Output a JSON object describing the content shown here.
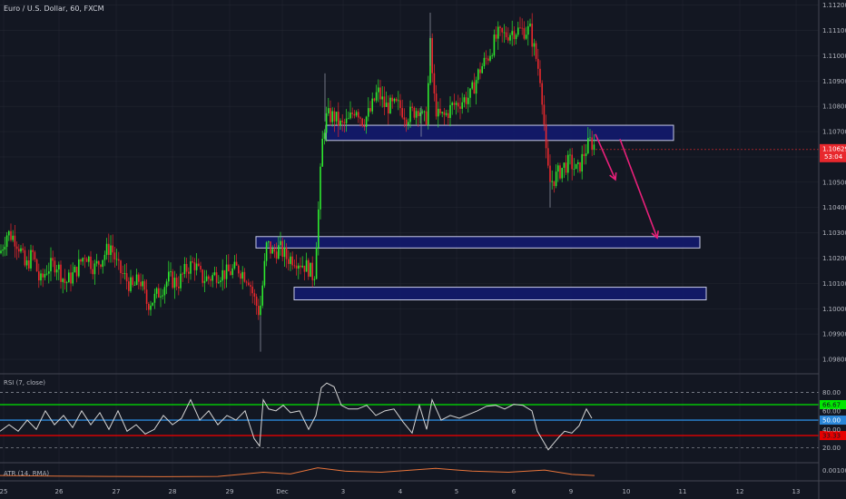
{
  "header": {
    "symbol_title": "Euro / U.S. Dollar, 60, FXCM"
  },
  "colors": {
    "background": "#131722",
    "grid": "#2a2e39",
    "axis_text": "#b2b5be",
    "bull": "#2ee82e",
    "bear": "#e8282d",
    "zone_fill": "#131a6e",
    "zone_stroke": "#c8cbe8",
    "arrow": "#e8207a",
    "rsi_line": "#d6d6d6",
    "rsi_upper": "#00e600",
    "rsi_mid": "#2a86d8",
    "rsi_lower": "#e60000",
    "atr_line": "#e8743a",
    "price_badge": "#e8282d"
  },
  "chart_data": {
    "type": "candlestick",
    "price_axis": {
      "ticks": [
        "1.11200",
        "1.11100",
        "1.11000",
        "1.10900",
        "1.10800",
        "1.10700",
        "1.10600",
        "1.10500",
        "1.10400",
        "1.10300",
        "1.10200",
        "1.10100",
        "1.10000",
        "1.09900",
        "1.09800"
      ],
      "ylim": [
        1.0975,
        1.1122
      ]
    },
    "time_axis": {
      "ticks": [
        "25",
        "26",
        "27",
        "28",
        "29",
        "Dec",
        "3",
        "4",
        "5",
        "6",
        "9",
        "10",
        "11",
        "12",
        "13"
      ]
    },
    "candle_path": [
      [
        0,
        1.1022
      ],
      [
        8,
        1.103
      ],
      [
        16,
        1.1028
      ],
      [
        22,
        1.1024
      ],
      [
        28,
        1.1016
      ],
      [
        36,
        1.1022
      ],
      [
        44,
        1.101
      ],
      [
        52,
        1.1016
      ],
      [
        62,
        1.1018
      ],
      [
        72,
        1.101
      ],
      [
        82,
        1.1014
      ],
      [
        94,
        1.1022
      ],
      [
        104,
        1.1016
      ],
      [
        112,
        1.102
      ],
      [
        122,
        1.1025
      ],
      [
        130,
        1.1016
      ],
      [
        138,
        1.1012
      ],
      [
        146,
        1.1008
      ],
      [
        154,
        1.1012
      ],
      [
        162,
        1.1002
      ],
      [
        170,
        1.1004
      ],
      [
        178,
        1.1008
      ],
      [
        186,
        1.1012
      ],
      [
        196,
        1.101
      ],
      [
        206,
        1.1016
      ],
      [
        214,
        1.1018
      ],
      [
        222,
        1.1012
      ],
      [
        230,
        1.1012
      ],
      [
        240,
        1.1014
      ],
      [
        250,
        1.1014
      ],
      [
        262,
        1.1016
      ],
      [
        274,
        1.1012
      ],
      [
        280,
        1.1004
      ],
      [
        286,
        1.0998
      ],
      [
        290,
        1.1012
      ],
      [
        294,
        1.1026
      ],
      [
        300,
        1.1022
      ],
      [
        308,
        1.1024
      ],
      [
        316,
        1.102
      ],
      [
        324,
        1.102
      ],
      [
        332,
        1.1018
      ],
      [
        340,
        1.1016
      ],
      [
        346,
        1.1012
      ],
      [
        348,
        1.1024
      ],
      [
        350,
        1.1034
      ],
      [
        352,
        1.1046
      ],
      [
        354,
        1.106
      ],
      [
        356,
        1.107
      ],
      [
        360,
        1.1076
      ],
      [
        368,
        1.1076
      ],
      [
        376,
        1.1072
      ],
      [
        384,
        1.1074
      ],
      [
        392,
        1.108
      ],
      [
        400,
        1.1074
      ],
      [
        408,
        1.1078
      ],
      [
        416,
        1.1086
      ],
      [
        424,
        1.108
      ],
      [
        432,
        1.108
      ],
      [
        440,
        1.108
      ],
      [
        448,
        1.1076
      ],
      [
        456,
        1.1078
      ],
      [
        462,
        1.108
      ],
      [
        466,
        1.1074
      ],
      [
        470,
        1.1076
      ],
      [
        474,
        1.1104
      ],
      [
        478,
        1.1084
      ],
      [
        482,
        1.1076
      ],
      [
        490,
        1.1076
      ],
      [
        498,
        1.108
      ],
      [
        508,
        1.1082
      ],
      [
        518,
        1.1084
      ],
      [
        528,
        1.1094
      ],
      [
        538,
        1.11
      ],
      [
        548,
        1.1108
      ],
      [
        556,
        1.1108
      ],
      [
        566,
        1.111
      ],
      [
        576,
        1.111
      ],
      [
        584,
        1.111
      ],
      [
        590,
        1.11
      ],
      [
        596,
        1.109
      ],
      [
        600,
        1.107
      ],
      [
        602,
        1.1058
      ],
      [
        606,
        1.105
      ],
      [
        612,
        1.1052
      ],
      [
        620,
        1.1056
      ],
      [
        628,
        1.1058
      ],
      [
        636,
        1.1054
      ],
      [
        644,
        1.1062
      ],
      [
        650,
        1.1066
      ],
      [
        656,
        1.1064
      ]
    ],
    "zones": [
      {
        "from_price": 1.10725,
        "to_price": 1.10665,
        "x_start": 359,
        "x_end": 742
      },
      {
        "from_price": 1.10285,
        "to_price": 1.1024,
        "x_start": 282,
        "x_end": 771
      },
      {
        "from_price": 1.10085,
        "to_price": 1.10035,
        "x_start": 324,
        "x_end": 778
      }
    ],
    "last_price": "1.10629",
    "countdown": "53:04",
    "projection_arrows": [
      {
        "from": [
          656,
          1.1069
        ],
        "to": [
          678,
          1.1051
        ]
      },
      {
        "from": [
          683,
          1.1067
        ],
        "to": [
          724,
          1.1028
        ]
      }
    ],
    "rsi": {
      "title": "RSI (7, close)",
      "ticks": [
        "80.00",
        "60.00",
        "40.00",
        "20.00"
      ],
      "ylim": [
        6,
        98
      ],
      "upper_label": "66.67",
      "mid_label": "50.00",
      "lower_label": "33.33",
      "upper": 66.67,
      "mid": 50.0,
      "lower": 33.33,
      "dashed_levels": [
        80,
        20
      ],
      "path": [
        [
          0,
          38
        ],
        [
          10,
          45
        ],
        [
          20,
          38
        ],
        [
          30,
          50
        ],
        [
          40,
          40
        ],
        [
          50,
          60
        ],
        [
          60,
          45
        ],
        [
          70,
          55
        ],
        [
          80,
          42
        ],
        [
          90,
          60
        ],
        [
          100,
          45
        ],
        [
          110,
          58
        ],
        [
          120,
          40
        ],
        [
          130,
          60
        ],
        [
          140,
          38
        ],
        [
          150,
          45
        ],
        [
          160,
          35
        ],
        [
          170,
          40
        ],
        [
          180,
          55
        ],
        [
          190,
          45
        ],
        [
          200,
          52
        ],
        [
          210,
          72
        ],
        [
          220,
          50
        ],
        [
          230,
          60
        ],
        [
          240,
          45
        ],
        [
          250,
          55
        ],
        [
          260,
          50
        ],
        [
          270,
          60
        ],
        [
          280,
          30
        ],
        [
          286,
          22
        ],
        [
          290,
          72
        ],
        [
          296,
          62
        ],
        [
          304,
          60
        ],
        [
          312,
          66
        ],
        [
          320,
          58
        ],
        [
          330,
          60
        ],
        [
          340,
          40
        ],
        [
          348,
          55
        ],
        [
          354,
          85
        ],
        [
          360,
          90
        ],
        [
          368,
          86
        ],
        [
          376,
          66
        ],
        [
          384,
          62
        ],
        [
          394,
          62
        ],
        [
          404,
          66
        ],
        [
          414,
          55
        ],
        [
          424,
          60
        ],
        [
          434,
          62
        ],
        [
          444,
          48
        ],
        [
          454,
          36
        ],
        [
          462,
          66
        ],
        [
          470,
          40
        ],
        [
          476,
          72
        ],
        [
          486,
          50
        ],
        [
          496,
          55
        ],
        [
          506,
          52
        ],
        [
          516,
          56
        ],
        [
          526,
          60
        ],
        [
          536,
          65
        ],
        [
          546,
          66
        ],
        [
          556,
          62
        ],
        [
          566,
          67
        ],
        [
          576,
          66
        ],
        [
          586,
          60
        ],
        [
          592,
          38
        ],
        [
          598,
          28
        ],
        [
          604,
          18
        ],
        [
          610,
          25
        ],
        [
          616,
          32
        ],
        [
          622,
          38
        ],
        [
          630,
          36
        ],
        [
          638,
          44
        ],
        [
          646,
          62
        ],
        [
          652,
          52
        ]
      ]
    },
    "atr": {
      "title": "ATR (14, RMA)",
      "tick": "0.00100",
      "ylim": [
        0.0002,
        0.0016
      ],
      "path": [
        [
          0,
          0.0006
        ],
        [
          60,
          0.00055
        ],
        [
          120,
          0.00052
        ],
        [
          180,
          0.0005
        ],
        [
          240,
          0.00052
        ],
        [
          290,
          0.0009
        ],
        [
          320,
          0.00075
        ],
        [
          350,
          0.0013
        ],
        [
          380,
          0.001
        ],
        [
          420,
          0.0009
        ],
        [
          480,
          0.00125
        ],
        [
          520,
          0.001
        ],
        [
          560,
          0.0009
        ],
        [
          600,
          0.0011
        ],
        [
          630,
          0.0007
        ],
        [
          655,
          0.0006
        ]
      ]
    }
  }
}
